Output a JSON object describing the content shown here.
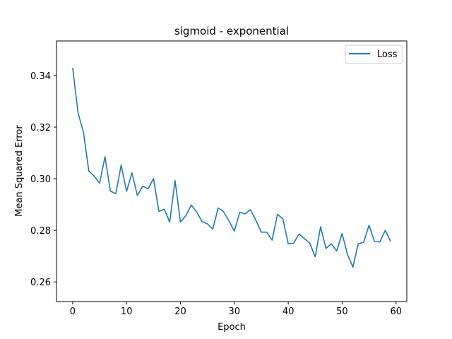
{
  "chart_data": {
    "type": "line",
    "title": "sigmoid - exponential",
    "xlabel": "Epoch",
    "ylabel": "Mean Squared Error",
    "xlim": [
      -3,
      62
    ],
    "ylim": [
      0.2524,
      0.3534
    ],
    "xticks": [
      0,
      10,
      20,
      30,
      40,
      50,
      60
    ],
    "yticks": [
      0.26,
      0.28,
      0.3,
      0.32,
      0.34
    ],
    "ytick_labels": [
      "0.26",
      "0.28",
      "0.30",
      "0.32",
      "0.34"
    ],
    "grid": false,
    "legend_position": "top-right",
    "series": [
      {
        "name": "Loss",
        "color": "#1f77b4",
        "x": [
          0,
          1,
          2,
          3,
          4,
          5,
          6,
          7,
          8,
          9,
          10,
          11,
          12,
          13,
          14,
          15,
          16,
          17,
          18,
          19,
          20,
          21,
          22,
          23,
          24,
          25,
          26,
          27,
          28,
          29,
          30,
          31,
          32,
          33,
          34,
          35,
          36,
          37,
          38,
          39,
          40,
          41,
          42,
          43,
          44,
          45,
          46,
          47,
          48,
          49,
          50,
          51,
          52,
          53,
          54,
          55,
          56,
          57,
          58,
          59
        ],
        "y": [
          0.343,
          0.3255,
          0.318,
          0.303,
          0.301,
          0.2983,
          0.3085,
          0.2952,
          0.2942,
          0.3053,
          0.2951,
          0.3023,
          0.2935,
          0.2971,
          0.2961,
          0.3001,
          0.2873,
          0.2882,
          0.2832,
          0.2993,
          0.2832,
          0.2857,
          0.2898,
          0.2872,
          0.2834,
          0.2825,
          0.2805,
          0.2887,
          0.2872,
          0.2837,
          0.2797,
          0.287,
          0.2864,
          0.288,
          0.2839,
          0.2793,
          0.2793,
          0.2762,
          0.2862,
          0.2845,
          0.2748,
          0.275,
          0.2786,
          0.2768,
          0.275,
          0.2698,
          0.2814,
          0.273,
          0.2748,
          0.272,
          0.2788,
          0.2706,
          0.2658,
          0.2748,
          0.2754,
          0.282,
          0.2757,
          0.2755,
          0.28,
          0.2757
        ]
      }
    ]
  }
}
